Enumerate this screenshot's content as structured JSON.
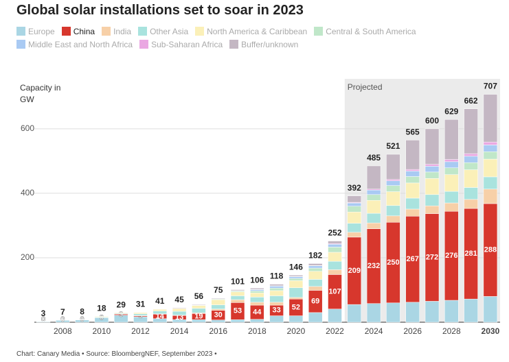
{
  "chart_data": {
    "type": "stacked_bar",
    "title": "Global solar installations set to soar in 2023",
    "y_axis_label": "Capacity in GW",
    "annotation": "Projected",
    "source": "Chart: Canary Media • Source: BloombergNEF, September 2023 •",
    "categories": [
      null,
      "2008",
      null,
      "2010",
      null,
      "2012",
      null,
      "2014",
      null,
      "2016",
      null,
      "2018",
      null,
      "2020",
      null,
      "2022",
      null,
      "2024",
      null,
      "2026",
      null,
      "2028",
      null,
      "2030"
    ],
    "totals": [
      3,
      7,
      8,
      18,
      29,
      31,
      41,
      45,
      56,
      75,
      101,
      106,
      118,
      146,
      182,
      252,
      392,
      485,
      521,
      565,
      600,
      629,
      662,
      707
    ],
    "ylim": [
      0,
      755
    ],
    "yticks": [
      200,
      400,
      600
    ],
    "grid": true,
    "series": [
      {
        "name": "Europe",
        "color": "#aad6e4",
        "values": [
          2,
          6,
          7,
          14,
          22,
          17,
          11,
          8,
          8,
          7,
          8,
          9,
          20,
          20,
          30,
          41,
          55,
          58,
          60,
          62,
          65,
          68,
          72,
          80
        ]
      },
      {
        "name": "China",
        "color": "#d7372d",
        "values": [
          0,
          0,
          0,
          0,
          3,
          3,
          14,
          13,
          19,
          30,
          53,
          44,
          33,
          52,
          69,
          107,
          209,
          232,
          250,
          267,
          272,
          276,
          281,
          288
        ]
      },
      {
        "name": "India",
        "color": "#f7d0a8",
        "values": [
          0,
          0,
          0,
          0,
          0,
          1,
          1,
          1,
          2,
          4,
          9,
          9,
          9,
          5,
          12,
          15,
          15,
          18,
          20,
          22,
          24,
          26,
          28,
          45
        ]
      },
      {
        "name": "Other Asia",
        "color": "#a9e3de",
        "values": [
          0,
          0,
          1,
          2,
          2,
          5,
          9,
          12,
          14,
          13,
          12,
          16,
          20,
          30,
          22,
          26,
          28,
          30,
          32,
          34,
          35,
          36,
          37,
          38
        ]
      },
      {
        "name": "North America & Caribbean",
        "color": "#fbf0b8",
        "values": [
          1,
          1,
          0,
          2,
          2,
          4,
          5,
          8,
          9,
          16,
          12,
          13,
          16,
          22,
          25,
          28,
          35,
          40,
          43,
          47,
          50,
          52,
          55,
          55
        ]
      },
      {
        "name": "Central & South America",
        "color": "#c0e7c9",
        "values": [
          0,
          0,
          0,
          0,
          0,
          0,
          0,
          1,
          1,
          2,
          3,
          6,
          8,
          7,
          10,
          16,
          18,
          18,
          19,
          20,
          20,
          21,
          22,
          23
        ]
      },
      {
        "name": "Middle East and North Africa",
        "color": "#a9caf3",
        "values": [
          0,
          0,
          0,
          0,
          0,
          0,
          0,
          0,
          1,
          1,
          1,
          4,
          6,
          5,
          7,
          9,
          10,
          14,
          15,
          17,
          18,
          19,
          20,
          21
        ]
      },
      {
        "name": "Sub-Saharan Africa",
        "color": "#eaa8e2",
        "values": [
          0,
          0,
          0,
          0,
          0,
          0,
          0,
          0,
          0,
          0,
          0,
          1,
          1,
          1,
          1,
          2,
          2,
          3,
          4,
          5,
          6,
          7,
          8,
          9
        ]
      },
      {
        "name": "Buffer/unknown",
        "color": "#c4b7c3",
        "values": [
          0,
          0,
          0,
          0,
          0,
          1,
          1,
          2,
          2,
          2,
          3,
          4,
          5,
          4,
          6,
          8,
          20,
          72,
          78,
          91,
          110,
          124,
          139,
          148
        ]
      }
    ]
  }
}
